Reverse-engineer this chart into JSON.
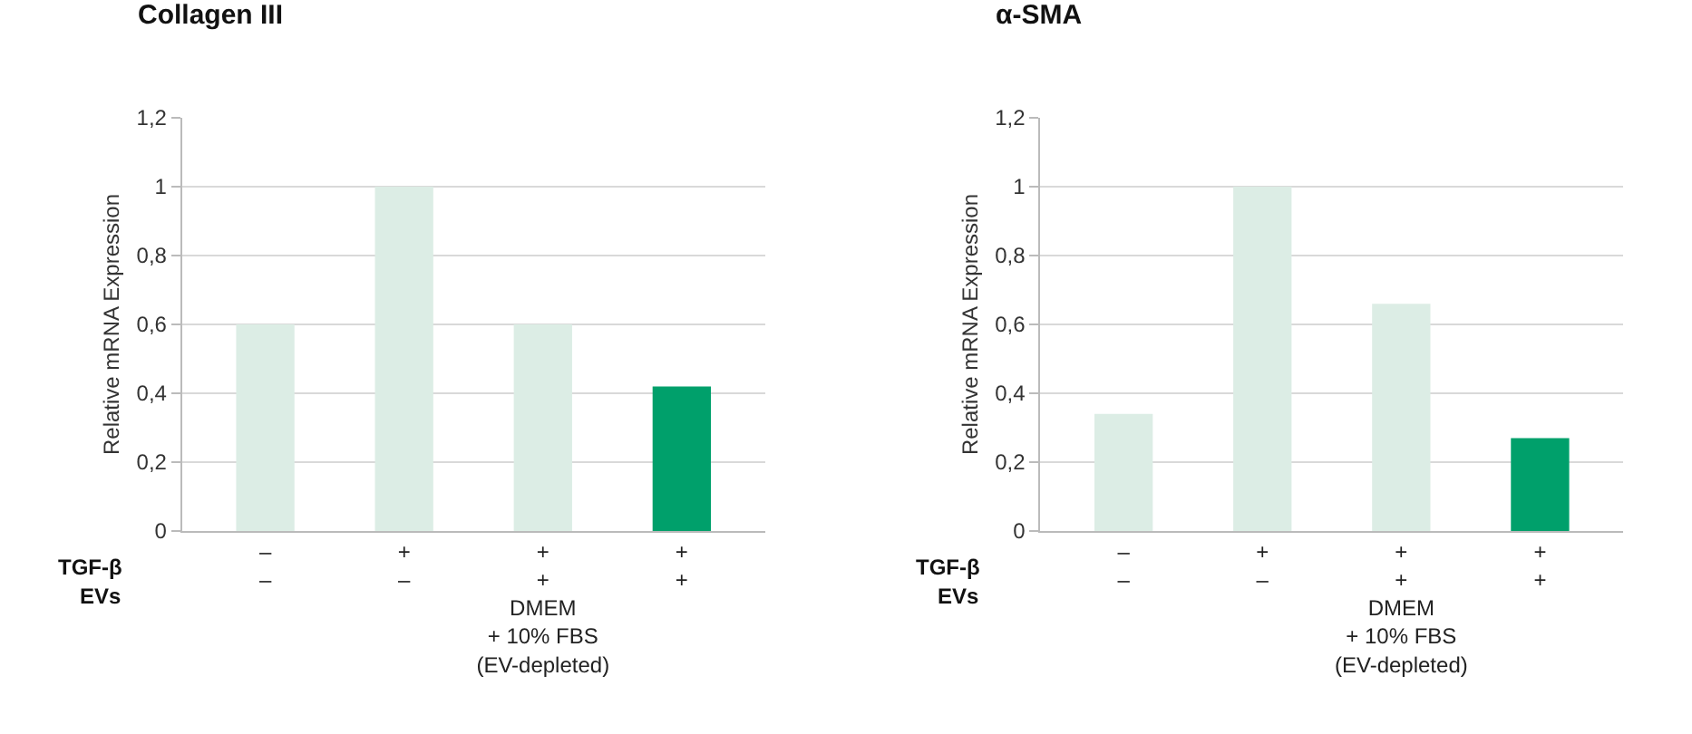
{
  "chart_data": [
    {
      "type": "bar",
      "title": "Collagen III",
      "ylabel": "Relative mRNA Expression",
      "categories": [
        "–\n–",
        "+\n–",
        "+\n+\nDMEM\n+ 10% FBS\n(EV-depleted)",
        "+\n+"
      ],
      "values": [
        0.6,
        1.0,
        0.6,
        0.42
      ],
      "colors": [
        "#dcede5",
        "#dcede5",
        "#dcede5",
        "#00a06b"
      ],
      "ylim": [
        0,
        1.2
      ],
      "yticks": [
        0,
        {
          "value": 0.2,
          "label": "0,2"
        },
        {
          "value": 0.4,
          "label": "0,4"
        },
        {
          "value": 0.6,
          "label": "0,6"
        },
        {
          "value": 0.8,
          "label": "0,8"
        },
        1,
        {
          "value": 1.2,
          "label": "1,2"
        }
      ],
      "grid": "y",
      "annotations": [
        "TGF-β",
        "EVs"
      ]
    },
    {
      "type": "bar",
      "title": "α-SMA",
      "ylabel": "Relative mRNA Expression",
      "categories": [
        "–\n–",
        "+\n–",
        "+\n+\nDMEM\n+ 10% FBS\n(EV-depleted)",
        "+\n+"
      ],
      "values": [
        0.34,
        1.0,
        0.66,
        0.27
      ],
      "colors": [
        "#dcede5",
        "#dcede5",
        "#dcede5",
        "#00a06b"
      ],
      "ylim": [
        0,
        1.2
      ],
      "yticks": [
        0,
        {
          "value": 0.2,
          "label": "0,2"
        },
        {
          "value": 0.4,
          "label": "0,4"
        },
        {
          "value": 0.6,
          "label": "0,6"
        },
        {
          "value": 0.8,
          "label": "0,8"
        },
        1,
        {
          "value": 1.2,
          "label": "1,2"
        }
      ],
      "grid": "y",
      "annotations": [
        "TGF-β",
        "EVs"
      ]
    }
  ]
}
